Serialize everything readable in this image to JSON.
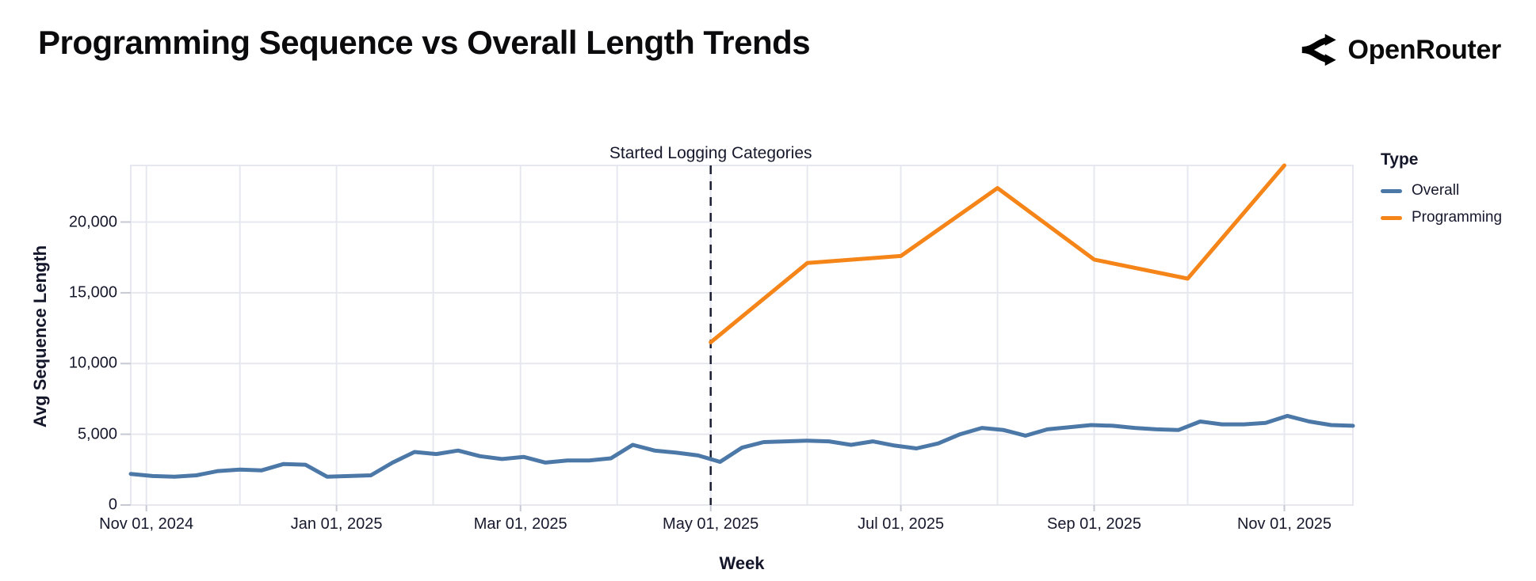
{
  "header": {
    "title": "Programming Sequence vs Overall Length Trends",
    "brand": "OpenRouter"
  },
  "colors": {
    "overall_line": "#4c78a8",
    "programming_line": "#f58518",
    "grid": "#e7e8ef",
    "tick": "#c6c9d3",
    "dashed_rule": "#1a1d31",
    "axis_text": "#16182c"
  },
  "chart_data": {
    "type": "line",
    "title": "Programming Sequence vs Overall Length Trends",
    "xlabel": "Week",
    "ylabel": "Avg Sequence Length",
    "x_domain": [
      "2024-10-27",
      "2025-11-23"
    ],
    "ylim": [
      0,
      24000
    ],
    "grid": {
      "x": "monthly",
      "y_step": 5000
    },
    "legend": {
      "title": "Type",
      "position": "right"
    },
    "annotation": {
      "label": "Started Logging Categories",
      "date": "2025-05-01",
      "style": "vertical-dashed-line"
    },
    "x_ticks": [
      {
        "date": "2024-11-01",
        "label": "Nov 01, 2024"
      },
      {
        "date": "2025-01-01",
        "label": "Jan 01, 2025"
      },
      {
        "date": "2025-03-01",
        "label": "Mar 01, 2025"
      },
      {
        "date": "2025-05-01",
        "label": "May 01, 2025"
      },
      {
        "date": "2025-07-01",
        "label": "Jul 01, 2025"
      },
      {
        "date": "2025-09-01",
        "label": "Sep 01, 2025"
      },
      {
        "date": "2025-11-01",
        "label": "Nov 01, 2025"
      }
    ],
    "y_ticks": [
      {
        "value": 0,
        "label": "0"
      },
      {
        "value": 5000,
        "label": "5,000"
      },
      {
        "value": 10000,
        "label": "10,000"
      },
      {
        "value": 15000,
        "label": "15,000"
      },
      {
        "value": 20000,
        "label": "20,000"
      }
    ],
    "series": [
      {
        "name": "Overall",
        "color": "#4c78a8",
        "cadence": "weekly",
        "points": [
          [
            "2024-10-27",
            2200
          ],
          [
            "2024-11-03",
            2050
          ],
          [
            "2024-11-10",
            2000
          ],
          [
            "2024-11-17",
            2100
          ],
          [
            "2024-11-24",
            2400
          ],
          [
            "2024-12-01",
            2500
          ],
          [
            "2024-12-08",
            2450
          ],
          [
            "2024-12-15",
            2900
          ],
          [
            "2024-12-22",
            2850
          ],
          [
            "2024-12-29",
            2000
          ],
          [
            "2025-01-05",
            2050
          ],
          [
            "2025-01-12",
            2100
          ],
          [
            "2025-01-19",
            3000
          ],
          [
            "2025-01-26",
            3750
          ],
          [
            "2025-02-02",
            3600
          ],
          [
            "2025-02-09",
            3850
          ],
          [
            "2025-02-16",
            3450
          ],
          [
            "2025-02-23",
            3250
          ],
          [
            "2025-03-02",
            3400
          ],
          [
            "2025-03-09",
            3000
          ],
          [
            "2025-03-16",
            3150
          ],
          [
            "2025-03-23",
            3150
          ],
          [
            "2025-03-30",
            3300
          ],
          [
            "2025-04-06",
            4250
          ],
          [
            "2025-04-13",
            3850
          ],
          [
            "2025-04-20",
            3700
          ],
          [
            "2025-04-27",
            3500
          ],
          [
            "2025-05-04",
            3050
          ],
          [
            "2025-05-11",
            4050
          ],
          [
            "2025-05-18",
            4450
          ],
          [
            "2025-05-25",
            4500
          ],
          [
            "2025-06-01",
            4550
          ],
          [
            "2025-06-08",
            4500
          ],
          [
            "2025-06-15",
            4250
          ],
          [
            "2025-06-22",
            4500
          ],
          [
            "2025-06-29",
            4200
          ],
          [
            "2025-07-06",
            4000
          ],
          [
            "2025-07-13",
            4350
          ],
          [
            "2025-07-20",
            5000
          ],
          [
            "2025-07-27",
            5450
          ],
          [
            "2025-08-03",
            5300
          ],
          [
            "2025-08-10",
            4900
          ],
          [
            "2025-08-17",
            5350
          ],
          [
            "2025-08-24",
            5500
          ],
          [
            "2025-08-31",
            5650
          ],
          [
            "2025-09-07",
            5600
          ],
          [
            "2025-09-14",
            5450
          ],
          [
            "2025-09-21",
            5350
          ],
          [
            "2025-09-28",
            5300
          ],
          [
            "2025-10-05",
            5900
          ],
          [
            "2025-10-12",
            5700
          ],
          [
            "2025-10-19",
            5700
          ],
          [
            "2025-10-26",
            5800
          ],
          [
            "2025-11-02",
            6300
          ],
          [
            "2025-11-09",
            5900
          ],
          [
            "2025-11-16",
            5650
          ],
          [
            "2025-11-23",
            5600
          ]
        ]
      },
      {
        "name": "Programming",
        "color": "#f58518",
        "cadence": "monthly",
        "points": [
          [
            "2025-05-01",
            11500
          ],
          [
            "2025-06-01",
            17100
          ],
          [
            "2025-07-01",
            17600
          ],
          [
            "2025-08-01",
            22400
          ],
          [
            "2025-09-01",
            17350
          ],
          [
            "2025-10-01",
            16000
          ],
          [
            "2025-11-01",
            24000
          ]
        ]
      }
    ]
  }
}
